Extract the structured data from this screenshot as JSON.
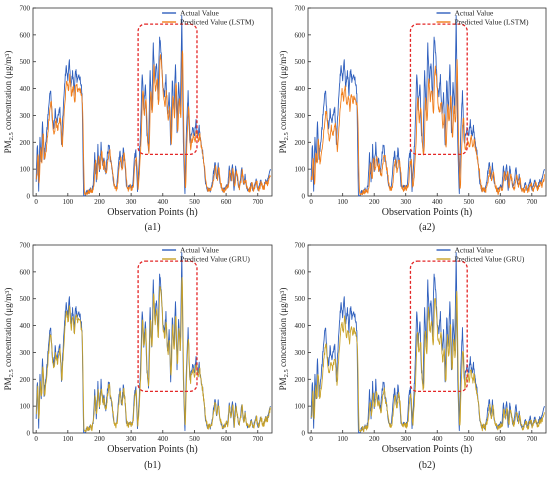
{
  "figure": {
    "panels": [
      "a1",
      "a2",
      "b1",
      "b2"
    ]
  },
  "chart_data": [
    {
      "id": "a1",
      "type": "line",
      "caption": "(a1)",
      "xlabel": "Observation Points (h)",
      "ylabel_main": "PM",
      "ylabel_sub": "2.5",
      "ylabel_rest": " concentration (μg/m",
      "ylabel_sup": "3",
      "ylabel_end": ")",
      "xlim": [
        -10,
        745
      ],
      "ylim": [
        0,
        700
      ],
      "xticks": [
        0,
        100,
        200,
        300,
        400,
        500,
        600,
        700
      ],
      "yticks": [
        0,
        100,
        200,
        300,
        400,
        500,
        600,
        700
      ],
      "highlight_box": {
        "x": [
          322,
          508
        ],
        "y": [
          155,
          640
        ],
        "color": "#e32626"
      },
      "series": [
        {
          "name": "Actual Value",
          "color": "#2f5fbd",
          "kind": "actual"
        },
        {
          "name": "Predicted Value (LSTM)",
          "color": "#f07d1a",
          "kind": "lstm"
        }
      ]
    },
    {
      "id": "a2",
      "type": "line",
      "caption": "(a2)",
      "xlabel": "Observation Points (h)",
      "ylabel_main": "PM",
      "ylabel_sub": "2.5",
      "ylabel_rest": " concentration (μg/m",
      "ylabel_sup": "3",
      "ylabel_end": ")",
      "xlim": [
        -10,
        745
      ],
      "ylim": [
        0,
        700
      ],
      "xticks": [
        0,
        100,
        200,
        300,
        400,
        500,
        600,
        700
      ],
      "yticks": [
        0,
        100,
        200,
        300,
        400,
        500,
        600,
        700
      ],
      "highlight_box": {
        "x": [
          315,
          495
        ],
        "y": [
          155,
          640
        ],
        "color": "#e32626"
      },
      "series": [
        {
          "name": "Actual Value",
          "color": "#2f5fbd",
          "kind": "actual"
        },
        {
          "name": "Predicted Value (LSTM)",
          "color": "#f07d1a",
          "kind": "lstm2"
        }
      ]
    },
    {
      "id": "b1",
      "type": "line",
      "caption": "(b1)",
      "xlabel": "Observation Points (h)",
      "ylabel_main": "PM",
      "ylabel_sub": "2.5",
      "ylabel_rest": " concentration (μg/m",
      "ylabel_sup": "3",
      "ylabel_end": ")",
      "xlim": [
        -10,
        745
      ],
      "ylim": [
        0,
        700
      ],
      "xticks": [
        0,
        100,
        200,
        300,
        400,
        500,
        600,
        700
      ],
      "yticks": [
        0,
        100,
        200,
        300,
        400,
        500,
        600,
        700
      ],
      "highlight_box": {
        "x": [
          322,
          508
        ],
        "y": [
          155,
          640
        ],
        "color": "#e32626"
      },
      "series": [
        {
          "name": "Actual Value",
          "color": "#2f5fbd",
          "kind": "actual"
        },
        {
          "name": "Predicted Value (GRU)",
          "color": "#c9a227",
          "kind": "gru"
        }
      ]
    },
    {
      "id": "b2",
      "type": "line",
      "caption": "(b2)",
      "xlabel": "Observation Points (h)",
      "ylabel_main": "PM",
      "ylabel_sub": "2.5",
      "ylabel_rest": " concentration (μg/m",
      "ylabel_sup": "3",
      "ylabel_end": ")",
      "xlim": [
        -10,
        745
      ],
      "ylim": [
        0,
        700
      ],
      "xticks": [
        0,
        100,
        200,
        300,
        400,
        500,
        600,
        700
      ],
      "yticks": [
        0,
        100,
        200,
        300,
        400,
        500,
        600,
        700
      ],
      "highlight_box": {
        "x": [
          315,
          495
        ],
        "y": [
          155,
          640
        ],
        "color": "#e32626"
      },
      "series": [
        {
          "name": "Actual Value",
          "color": "#2f5fbd",
          "kind": "actual"
        },
        {
          "name": "Predicted Value (GRU)",
          "color": "#c9a227",
          "kind": "gru2"
        }
      ]
    }
  ],
  "actual_keypoints": [
    [
      0,
      60
    ],
    [
      4,
      200
    ],
    [
      8,
      30
    ],
    [
      12,
      220
    ],
    [
      16,
      120
    ],
    [
      20,
      280
    ],
    [
      25,
      140
    ],
    [
      30,
      200
    ],
    [
      35,
      260
    ],
    [
      40,
      340
    ],
    [
      45,
      400
    ],
    [
      50,
      300
    ],
    [
      55,
      250
    ],
    [
      60,
      320
    ],
    [
      65,
      270
    ],
    [
      70,
      300
    ],
    [
      75,
      320
    ],
    [
      80,
      200
    ],
    [
      85,
      310
    ],
    [
      90,
      420
    ],
    [
      95,
      480
    ],
    [
      100,
      440
    ],
    [
      105,
      500
    ],
    [
      110,
      400
    ],
    [
      115,
      460
    ],
    [
      120,
      380
    ],
    [
      125,
      470
    ],
    [
      130,
      420
    ],
    [
      135,
      460
    ],
    [
      140,
      430
    ],
    [
      145,
      380
    ],
    [
      150,
      0
    ],
    [
      155,
      0
    ],
    [
      160,
      20
    ],
    [
      165,
      10
    ],
    [
      170,
      30
    ],
    [
      175,
      15
    ],
    [
      180,
      40
    ],
    [
      185,
      150
    ],
    [
      190,
      60
    ],
    [
      195,
      180
    ],
    [
      200,
      100
    ],
    [
      205,
      190
    ],
    [
      210,
      120
    ],
    [
      215,
      130
    ],
    [
      220,
      80
    ],
    [
      225,
      160
    ],
    [
      230,
      190
    ],
    [
      235,
      130
    ],
    [
      240,
      100
    ],
    [
      245,
      40
    ],
    [
      250,
      30
    ],
    [
      255,
      40
    ],
    [
      260,
      120
    ],
    [
      265,
      160
    ],
    [
      270,
      110
    ],
    [
      275,
      170
    ],
    [
      280,
      130
    ],
    [
      285,
      40
    ],
    [
      290,
      30
    ],
    [
      295,
      40
    ],
    [
      300,
      30
    ],
    [
      305,
      40
    ],
    [
      310,
      130
    ],
    [
      315,
      170
    ],
    [
      320,
      20
    ],
    [
      325,
      120
    ],
    [
      330,
      250
    ],
    [
      335,
      460
    ],
    [
      340,
      330
    ],
    [
      345,
      420
    ],
    [
      350,
      230
    ],
    [
      355,
      180
    ],
    [
      360,
      470
    ],
    [
      365,
      310
    ],
    [
      370,
      560
    ],
    [
      375,
      420
    ],
    [
      380,
      500
    ],
    [
      385,
      360
    ],
    [
      390,
      600
    ],
    [
      395,
      530
    ],
    [
      400,
      410
    ],
    [
      405,
      380
    ],
    [
      410,
      440
    ],
    [
      415,
      300
    ],
    [
      420,
      380
    ],
    [
      425,
      200
    ],
    [
      430,
      440
    ],
    [
      435,
      310
    ],
    [
      440,
      500
    ],
    [
      445,
      240
    ],
    [
      450,
      420
    ],
    [
      455,
      300
    ],
    [
      460,
      660
    ],
    [
      465,
      200
    ],
    [
      470,
      0
    ],
    [
      475,
      250
    ],
    [
      480,
      390
    ],
    [
      485,
      200
    ],
    [
      490,
      220
    ],
    [
      495,
      260
    ],
    [
      500,
      230
    ],
    [
      505,
      280
    ],
    [
      510,
      220
    ],
    [
      515,
      250
    ],
    [
      520,
      200
    ],
    [
      525,
      170
    ],
    [
      530,
      120
    ],
    [
      535,
      50
    ],
    [
      540,
      20
    ],
    [
      545,
      30
    ],
    [
      550,
      20
    ],
    [
      555,
      40
    ],
    [
      560,
      80
    ],
    [
      565,
      130
    ],
    [
      570,
      60
    ],
    [
      575,
      120
    ],
    [
      580,
      50
    ],
    [
      585,
      30
    ],
    [
      590,
      20
    ],
    [
      595,
      30
    ],
    [
      600,
      40
    ],
    [
      605,
      30
    ],
    [
      610,
      110
    ],
    [
      615,
      60
    ],
    [
      620,
      120
    ],
    [
      625,
      20
    ],
    [
      630,
      110
    ],
    [
      635,
      70
    ],
    [
      640,
      30
    ],
    [
      645,
      60
    ],
    [
      650,
      110
    ],
    [
      655,
      40
    ],
    [
      660,
      80
    ],
    [
      665,
      30
    ],
    [
      670,
      20
    ],
    [
      675,
      30
    ],
    [
      680,
      50
    ],
    [
      685,
      20
    ],
    [
      690,
      40
    ],
    [
      695,
      60
    ],
    [
      700,
      20
    ],
    [
      705,
      40
    ],
    [
      710,
      60
    ],
    [
      715,
      30
    ],
    [
      720,
      40
    ],
    [
      725,
      60
    ],
    [
      730,
      50
    ],
    [
      735,
      80
    ],
    [
      740,
      100
    ]
  ]
}
